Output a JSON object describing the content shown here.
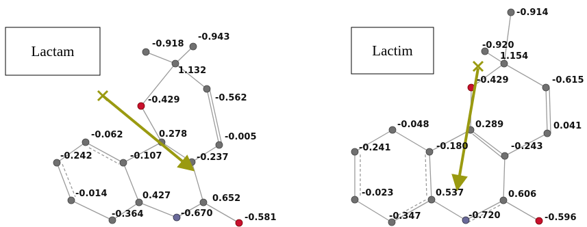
{
  "panels": [
    {
      "title": "Lactam",
      "charges": [
        "-0.918",
        "-0.943",
        "1.132",
        "-0.429",
        "-0.562",
        "0.278",
        "-0.005",
        "-0.062",
        "-0.242",
        "-0.107",
        "-0.237",
        "-0.014",
        "0.427",
        "-0.364",
        "-0.670",
        "0.652",
        "-0.581"
      ]
    },
    {
      "title": "Lactim",
      "charges": [
        "-0.914",
        "-0.920",
        "1.154",
        "-0.429",
        "-0.615",
        "-0.048",
        "0.289",
        "0.041",
        "-0.241",
        "-0.180",
        "-0.243",
        "-0.023",
        "0.537",
        "0.606",
        "-0.347",
        "-0.720",
        "-0.596"
      ]
    }
  ]
}
